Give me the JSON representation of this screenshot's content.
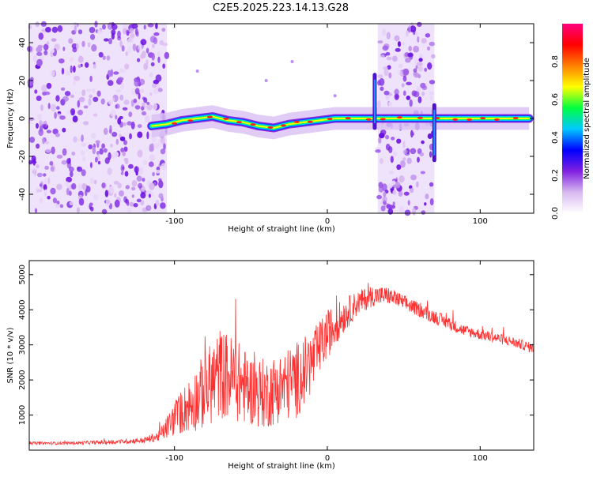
{
  "title": "C2E5.2025.223.14.13.G28",
  "chart_data": [
    {
      "type": "heatmap",
      "xlabel": "Height of straight line (km)",
      "ylabel": "Frequency (Hz)",
      "xlim": [
        -195,
        135
      ],
      "ylim": [
        -50,
        50
      ],
      "xticks": [
        -100,
        0,
        100
      ],
      "yticks": [
        -40,
        -20,
        0,
        20,
        40
      ],
      "grid": false,
      "colorbar": {
        "label": "Normalized spectral amplitude",
        "range": [
          0,
          1
        ],
        "ticks": [
          0.0,
          0.2,
          0.4,
          0.6,
          0.8
        ],
        "colormap": [
          "#ffffff",
          "#d8b8f0",
          "#8020e0",
          "#0000ff",
          "#00c8ff",
          "#00ff40",
          "#ffff00",
          "#ff8000",
          "#ff0000",
          "#ff0080"
        ]
      },
      "noise_regions": [
        [
          -195,
          -105
        ],
        [
          33,
          70
        ]
      ],
      "signal_trace": {
        "x": [
          -115,
          -105,
          -95,
          -85,
          -75,
          -65,
          -55,
          -45,
          -35,
          -25,
          -15,
          -5,
          5,
          15,
          25,
          30,
          70,
          80,
          90,
          100,
          110,
          120,
          132
        ],
        "y": [
          -4,
          -3,
          -1,
          0,
          1,
          -1,
          -2,
          -4,
          -5,
          -3,
          -2,
          -1,
          0,
          0,
          0,
          0,
          0,
          0,
          0,
          0,
          0,
          0,
          0
        ]
      },
      "spikes": [
        {
          "x": 31,
          "y_range": [
            -5,
            23
          ]
        },
        {
          "x": 70,
          "y_range": [
            -22,
            7
          ]
        }
      ]
    },
    {
      "type": "line",
      "xlabel": "Height of straight line (km)",
      "ylabel": "SNR (10 * v/v)",
      "xlim": [
        -195,
        135
      ],
      "ylim": [
        0,
        5400
      ],
      "xticks": [
        -100,
        0,
        100
      ],
      "yticks": [
        1000,
        2000,
        3000,
        4000,
        5000
      ],
      "grid": false,
      "series": [
        {
          "color": "#ff3030",
          "x": [
            -195,
            -170,
            -140,
            -120,
            -110,
            -100,
            -90,
            -80,
            -70,
            -60,
            -50,
            -40,
            -30,
            -20,
            -10,
            0,
            10,
            20,
            30,
            40,
            50,
            60,
            70,
            80,
            90,
            100,
            110,
            120,
            135
          ],
          "y": [
            200,
            200,
            230,
            280,
            400,
            900,
            1300,
            1700,
            2200,
            2000,
            1700,
            1600,
            1800,
            2000,
            2500,
            3300,
            3800,
            4200,
            4400,
            4400,
            4200,
            4000,
            3800,
            3600,
            3400,
            3300,
            3200,
            3100,
            2900
          ],
          "noise_amplitude": [
            40,
            40,
            60,
            80,
            150,
            500,
            800,
            1100,
            1300,
            1200,
            1000,
            1000,
            1000,
            1100,
            900,
            700,
            500,
            350,
            300,
            250,
            220,
            200,
            200,
            180,
            160,
            160,
            150,
            150,
            140
          ]
        }
      ]
    }
  ]
}
